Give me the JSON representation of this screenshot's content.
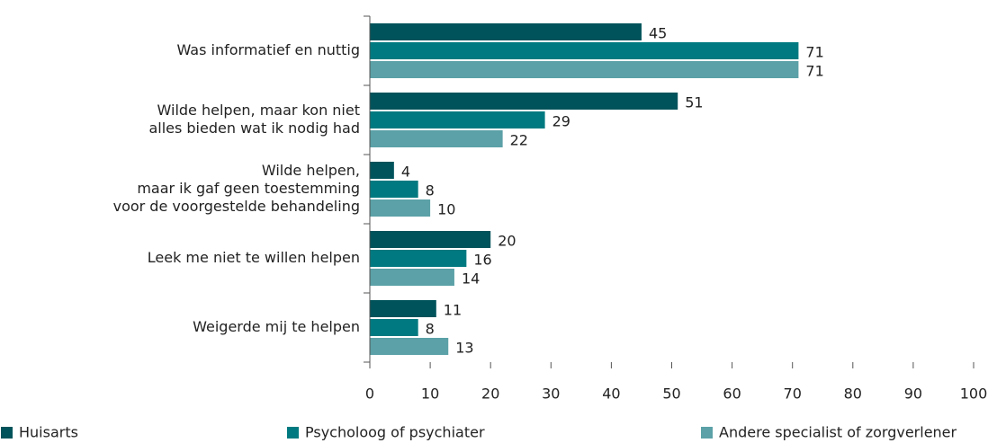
{
  "chart_data": {
    "type": "hbar",
    "categories": [
      [
        "Was informatief en nuttig"
      ],
      [
        "Wilde helpen, maar kon niet",
        "alles bieden wat ik nodig had"
      ],
      [
        "Wilde helpen,",
        "maar ik gaf geen toestemming",
        "voor de voorgestelde behandeling"
      ],
      [
        "Leek me niet te willen helpen"
      ],
      [
        "Weigerde mij te helpen"
      ]
    ],
    "series": [
      {
        "name": "Huisarts",
        "color": "#00535b",
        "values": [
          45,
          51,
          4,
          20,
          11
        ]
      },
      {
        "name": "Psycholoog of psychiater",
        "color": "#007a80",
        "values": [
          71,
          29,
          8,
          16,
          8
        ]
      },
      {
        "name": "Andere specialist of zorgverlener",
        "color": "#5ba1a7",
        "values": [
          71,
          22,
          10,
          14,
          13
        ]
      }
    ],
    "xlim": [
      0,
      100
    ],
    "xticks": [
      0,
      10,
      20,
      30,
      40,
      50,
      60,
      70,
      80,
      90,
      100
    ],
    "legend": "bottom"
  }
}
